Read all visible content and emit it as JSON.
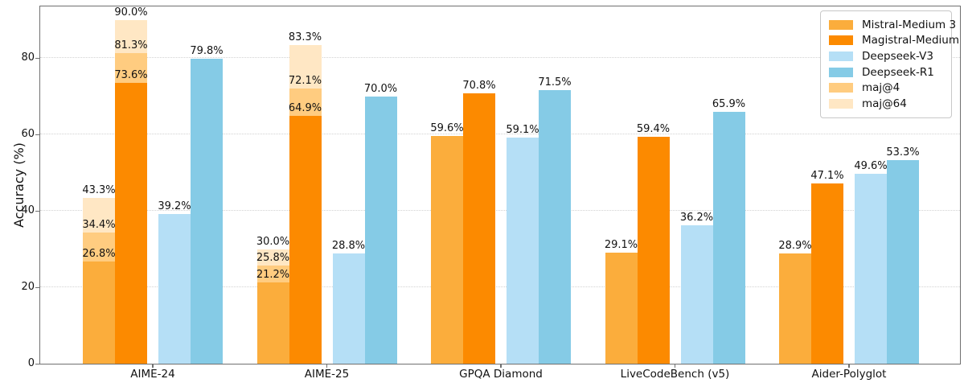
{
  "chart_data": {
    "type": "bar",
    "title": "",
    "xlabel": "",
    "ylabel": "Accuracy (%)",
    "value_suffix": "%",
    "ylim": [
      0,
      93.5
    ],
    "yticks": [
      0,
      20,
      40,
      60,
      80
    ],
    "grid": "horizontal dotted",
    "legend_position": "upper right",
    "categories": [
      "AIME-24",
      "AIME-25",
      "GPQA Diamond",
      "LiveCodeBench (v5)",
      "Aider-Polyglot"
    ],
    "series": [
      {
        "name": "Mistral-Medium 3",
        "color": "#FBAD3C",
        "values": [
          26.8,
          21.2,
          59.6,
          29.1,
          28.9
        ],
        "maj4": [
          34.4,
          25.8,
          null,
          null,
          null
        ],
        "maj64": [
          43.3,
          30.0,
          null,
          null,
          null
        ]
      },
      {
        "name": "Magistral-Medium",
        "color": "#FC8A00",
        "values": [
          73.6,
          64.9,
          70.8,
          59.4,
          47.1
        ],
        "maj4": [
          81.3,
          72.1,
          null,
          null,
          null
        ],
        "maj64": [
          90.0,
          83.3,
          null,
          null,
          null
        ]
      },
      {
        "name": "Deepseek-V3",
        "color": "#B5DFF6",
        "values": [
          39.2,
          28.8,
          59.1,
          36.2,
          49.6
        ]
      },
      {
        "name": "Deepseek-R1",
        "color": "#85CBE6",
        "values": [
          79.8,
          70.0,
          71.5,
          65.9,
          53.3
        ]
      }
    ],
    "overlays": [
      {
        "name": "maj@4",
        "key": "maj4",
        "color": "#FFCC80"
      },
      {
        "name": "maj@64",
        "key": "maj64",
        "color": "#FFE7C4"
      }
    ],
    "colors": {
      "grid": "#d2d2d2",
      "spine": "#707070",
      "text": "#111111",
      "legend_border": "#c8c8c8"
    }
  }
}
